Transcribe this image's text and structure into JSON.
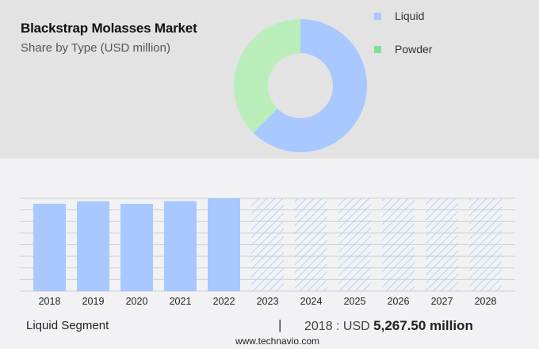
{
  "header": {
    "title": "Blackstrap Molasses Market",
    "subtitle": "Share by Type (USD million)"
  },
  "legend": [
    {
      "label": "Liquid",
      "color": "#a8c8ff"
    },
    {
      "label": "Powder",
      "color": "#7ee08f"
    }
  ],
  "footer": {
    "segment_label": "Liquid Segment",
    "divider": "|",
    "year_prefix": "2018 : USD ",
    "value": "5,267.50 million",
    "url": "www.technavio.com"
  },
  "chart_data": [
    {
      "type": "pie",
      "variant": "donut",
      "title": "Share by Type (USD million)",
      "categories": [
        "Liquid",
        "Powder"
      ],
      "values": [
        62.5,
        37.5
      ],
      "colors": [
        "#a8c8ff",
        "#b9eebb"
      ],
      "legend_position": "right"
    },
    {
      "type": "bar",
      "title": "Liquid Segment",
      "categories": [
        "2018",
        "2019",
        "2020",
        "2021",
        "2022",
        "2023",
        "2024",
        "2025",
        "2026",
        "2027",
        "2028"
      ],
      "values": [
        5267.5,
        5340,
        5265,
        5345,
        5430,
        null,
        null,
        null,
        null,
        null,
        null
      ],
      "forecast": [
        false,
        false,
        false,
        false,
        false,
        true,
        true,
        true,
        true,
        true,
        true
      ],
      "forecast_style": "hatched",
      "color": "#a8c8ff",
      "grid": true,
      "xlabel": "",
      "ylabel": "",
      "y_axis_labels_visible": false
    }
  ]
}
